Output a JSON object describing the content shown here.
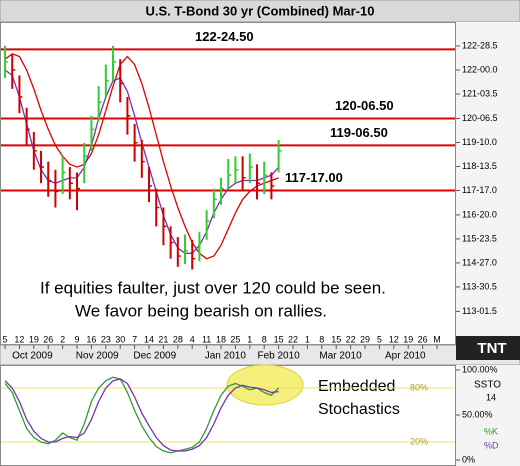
{
  "chart_data": {
    "type": "ohlc",
    "title": "U.S. T-Bond 30 yr (Combined) Mar-10",
    "ylim": [
      111.8,
      123.78
    ],
    "yticks": [
      {
        "value": 122.890625,
        "label": "122-28.5"
      },
      {
        "value": 122.0,
        "label": "122-00.0"
      },
      {
        "value": 121.109375,
        "label": "121-03.5"
      },
      {
        "value": 120.203125,
        "label": "120-06.5"
      },
      {
        "value": 119.3125,
        "label": "119-10.0"
      },
      {
        "value": 118.421875,
        "label": "118-13.5"
      },
      {
        "value": 117.53125,
        "label": "117-17.0"
      },
      {
        "value": 116.625,
        "label": "116-20.0"
      },
      {
        "value": 115.734375,
        "label": "115-23.5"
      },
      {
        "value": 114.84375,
        "label": "114-27.0"
      },
      {
        "value": 113.953125,
        "label": "113-30.5"
      },
      {
        "value": 113.046875,
        "label": "113-01.5"
      }
    ],
    "xlim": [
      -0.35,
      31.25
    ],
    "xticks": [
      {
        "value": 0,
        "label": "5"
      },
      {
        "value": 1,
        "label": "12"
      },
      {
        "value": 2,
        "label": "19"
      },
      {
        "value": 3,
        "label": "26"
      },
      {
        "value": 4,
        "label": "2"
      },
      {
        "value": 5,
        "label": "9"
      },
      {
        "value": 6,
        "label": "16"
      },
      {
        "value": 7,
        "label": "23"
      },
      {
        "value": 8,
        "label": "30"
      },
      {
        "value": 9,
        "label": "7"
      },
      {
        "value": 10,
        "label": "14"
      },
      {
        "value": 11,
        "label": "21"
      },
      {
        "value": 12,
        "label": "28"
      },
      {
        "value": 13,
        "label": "4"
      },
      {
        "value": 14,
        "label": "11"
      },
      {
        "value": 15,
        "label": "18"
      },
      {
        "value": 16,
        "label": "25"
      },
      {
        "value": 17,
        "label": "1"
      },
      {
        "value": 18,
        "label": "8"
      },
      {
        "value": 19,
        "label": "15"
      },
      {
        "value": 20,
        "label": "22"
      },
      {
        "value": 21,
        "label": "1"
      },
      {
        "value": 22,
        "label": "8"
      },
      {
        "value": 23,
        "label": "15"
      },
      {
        "value": 24,
        "label": "22"
      },
      {
        "value": 25,
        "label": "29"
      },
      {
        "value": 26,
        "label": "5"
      },
      {
        "value": 27,
        "label": "12"
      },
      {
        "value": 28,
        "label": "19"
      },
      {
        "value": 29,
        "label": "26"
      },
      {
        "value": 30,
        "label": "M"
      }
    ],
    "month_ticks": [
      {
        "value": 1.9,
        "label": "Oct 2009"
      },
      {
        "value": 6.4,
        "label": "Nov 2009"
      },
      {
        "value": 10.4,
        "label": "Dec 2009"
      },
      {
        "value": 15.3,
        "label": "Jan 2010"
      },
      {
        "value": 19.0,
        "label": "Feb 2010"
      },
      {
        "value": 23.3,
        "label": "Mar 2010"
      },
      {
        "value": 27.8,
        "label": "Apr 2010"
      }
    ],
    "up_color": "#33cc33",
    "down_color": "#cc0000",
    "bars": {
      "x": [
        0,
        0.5,
        1,
        1.5,
        2,
        2.5,
        3,
        3.5,
        4,
        4.5,
        5,
        5.5,
        6,
        6.5,
        7,
        7.5,
        8,
        8.5,
        9,
        9.5,
        10,
        10.5,
        11,
        11.5,
        12,
        12.5,
        13,
        13.5,
        14,
        14.5,
        15,
        15.5,
        16,
        16.5,
        17,
        17.5,
        18,
        18.5,
        19
      ],
      "high": [
        122.9,
        122.6,
        121.8,
        120.6,
        119.7,
        119.0,
        118.6,
        118.3,
        118.8,
        118.4,
        118.2,
        119.3,
        120.3,
        121.4,
        122.2,
        122.9,
        122.4,
        121.0,
        120.0,
        119.4,
        118.4,
        117.6,
        116.9,
        116.2,
        115.8,
        115.9,
        115.7,
        116.0,
        116.8,
        117.6,
        118.0,
        118.7,
        118.8,
        118.8,
        118.9,
        118.5,
        118.6,
        118.2,
        119.4
      ],
      "low": [
        121.7,
        121.3,
        120.4,
        119.2,
        118.3,
        117.8,
        117.3,
        116.9,
        117.4,
        117.2,
        116.8,
        117.8,
        119.0,
        120.1,
        121.0,
        121.6,
        120.8,
        119.6,
        118.6,
        118.0,
        117.1,
        116.2,
        115.5,
        115.0,
        114.7,
        114.8,
        114.6,
        114.9,
        115.7,
        116.5,
        117.0,
        117.6,
        117.8,
        117.5,
        117.8,
        117.2,
        117.4,
        117.2,
        118.2
      ],
      "close": [
        122.3,
        122.0,
        121.0,
        119.8,
        119.0,
        118.4,
        117.9,
        117.5,
        118.2,
        117.8,
        117.6,
        118.8,
        119.8,
        120.8,
        121.6,
        122.3,
        121.5,
        120.3,
        119.3,
        118.6,
        117.7,
        116.9,
        116.2,
        115.6,
        115.1,
        115.3,
        115.0,
        115.6,
        116.4,
        117.2,
        117.6,
        118.1,
        118.3,
        118.0,
        118.4,
        117.8,
        118.1,
        117.7,
        119.0
      ]
    },
    "averages": [
      {
        "color": "#e00000",
        "values": [
          122.4,
          122.6,
          122.5,
          122.0,
          121.3,
          120.5,
          119.8,
          119.2,
          118.8,
          118.5,
          118.4,
          118.5,
          118.9,
          119.6,
          120.5,
          121.4,
          122.2,
          122.5,
          122.2,
          121.5,
          120.6,
          119.6,
          118.6,
          117.7,
          116.9,
          116.2,
          115.6,
          115.2,
          115.0,
          115.1,
          115.5,
          116.1,
          116.7,
          117.2,
          117.5,
          117.7,
          117.8,
          117.9,
          118.0
        ]
      },
      {
        "color": "#7a2fb8",
        "values": [
          122.0,
          121.8,
          121.0,
          120.0,
          119.0,
          118.3,
          117.9,
          117.8,
          117.9,
          118.0,
          118.0,
          118.4,
          119.2,
          120.2,
          121.0,
          121.6,
          121.7,
          121.2,
          120.3,
          119.3,
          118.4,
          117.5,
          116.6,
          115.9,
          115.4,
          115.2,
          115.2,
          115.5,
          116.0,
          116.7,
          117.2,
          117.6,
          117.8,
          117.9,
          117.9,
          117.9,
          118.0,
          118.1,
          118.4
        ]
      }
    ],
    "levels": [
      {
        "value": 122.765625,
        "label": "122-24.50"
      },
      {
        "value": 120.203125,
        "label": "120-06.50"
      },
      {
        "value": 119.203125,
        "label": "119-06.50"
      },
      {
        "value": 117.53125,
        "label": "117-17.00"
      }
    ],
    "level_color": "#dd0000",
    "annotation": [
      "If equities faulter, just over 120 could be seen.",
      "We favor being bearish on rallies."
    ],
    "logo": "TNT",
    "stochastic": {
      "ylim": [
        0,
        100
      ],
      "yticks": [
        {
          "value": 100,
          "label": "100.00%"
        },
        {
          "value": 50,
          "label": "50.00%"
        },
        {
          "value": 0,
          "label": "0%"
        }
      ],
      "levels": [
        {
          "value": 80,
          "label": "80%"
        },
        {
          "value": 20,
          "label": "20%"
        }
      ],
      "name": "SSTO",
      "period": 14,
      "note": [
        "Embedded",
        "Stochastics"
      ],
      "series": [
        {
          "name": "%K",
          "color": "#2e9e2e",
          "values": [
            85,
            75,
            55,
            35,
            25,
            20,
            18,
            22,
            30,
            25,
            22,
            40,
            65,
            80,
            88,
            92,
            90,
            75,
            55,
            38,
            25,
            15,
            10,
            8,
            10,
            12,
            14,
            20,
            35,
            55,
            72,
            82,
            85,
            82,
            78,
            80,
            75,
            72,
            80
          ]
        },
        {
          "name": "%D",
          "color": "#7a2fb8",
          "values": [
            88,
            80,
            65,
            45,
            32,
            24,
            20,
            20,
            24,
            26,
            25,
            30,
            45,
            65,
            80,
            88,
            90,
            85,
            70,
            52,
            38,
            25,
            16,
            11,
            10,
            10,
            12,
            16,
            25,
            40,
            58,
            72,
            80,
            83,
            81,
            80,
            78,
            75,
            76
          ]
        }
      ]
    }
  }
}
